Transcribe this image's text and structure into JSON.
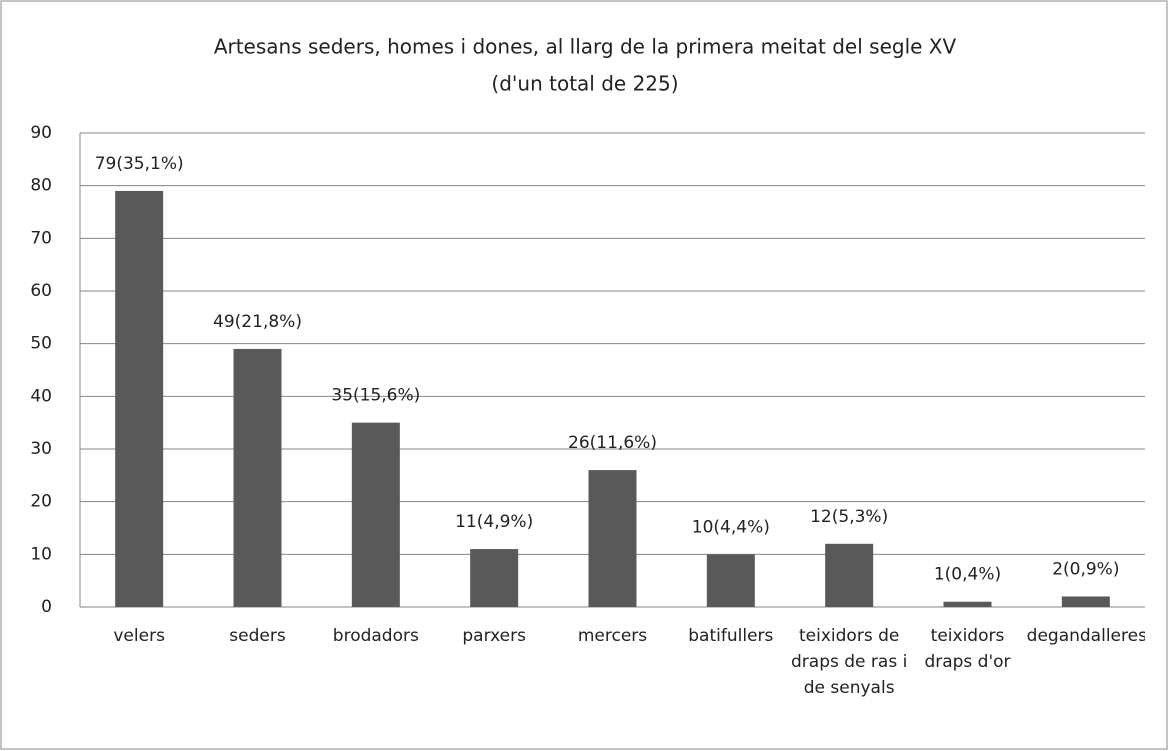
{
  "chart_data": {
    "type": "bar",
    "title": "Artesans seders, homes i dones, al llarg de la primera meitat del segle XV",
    "subtitle": "(d'un total de 225)",
    "categories": [
      "velers",
      "seders",
      "brodadors",
      "parxers",
      "mercers",
      "batifullers",
      "teixidors de draps de ras i de senyals",
      "teixidors draps d'or",
      "degandalleres"
    ],
    "values": [
      79,
      49,
      35,
      11,
      26,
      10,
      12,
      1,
      2
    ],
    "value_labels": [
      "79(35,1%)",
      "49(21,8%)",
      "35(15,6%)",
      "11(4,9%)",
      "26(11,6%)",
      "10(4,4%)",
      "12(5,3%)",
      "1(0,4%)",
      "2(0,9%)"
    ],
    "color": "#595959",
    "ylim": [
      0,
      90
    ],
    "yticks": [
      0,
      10,
      20,
      30,
      40,
      50,
      60,
      70,
      80,
      90
    ],
    "grid": true
  }
}
